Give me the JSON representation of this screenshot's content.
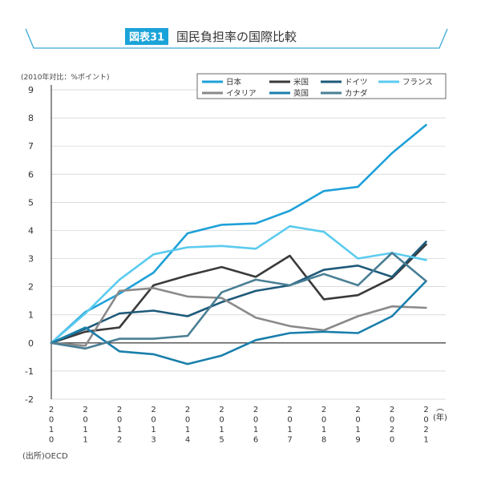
{
  "badge": "図表31",
  "title": "国民負担率の国際比較",
  "unit_label": "(2010年対比：%ポイント)",
  "source": "(出所)OECD",
  "x_unit": "(年)",
  "colors": {
    "badge_bg": "#1aa3d9",
    "header_line": "#3aa8d6",
    "axis": "#222222",
    "grid": "#cfcfcf"
  },
  "chart_data": {
    "type": "line",
    "title": "国民負担率の国際比較",
    "ylabel": "(2010年対比：%ポイント)",
    "xlabel": "(年)",
    "x": [
      "2010",
      "2011",
      "2012",
      "2013",
      "2014",
      "2015",
      "2016",
      "2017",
      "2018",
      "2019",
      "2020",
      "2021"
    ],
    "ylim": [
      -2,
      9
    ],
    "yticks": [
      "-2",
      "-1",
      "0",
      "1",
      "2",
      "3",
      "4",
      "5",
      "6",
      "7",
      "8",
      "9"
    ],
    "grid": true,
    "legend_position": "top-right",
    "series": [
      {
        "name": "日本",
        "color": "#1fa0d8",
        "values": [
          0,
          1.1,
          1.75,
          2.5,
          3.9,
          4.2,
          4.25,
          4.7,
          5.4,
          5.55,
          6.75,
          7.75
        ]
      },
      {
        "name": "米国",
        "color": "#3a3a3a",
        "values": [
          0,
          0.4,
          0.55,
          2.05,
          2.4,
          2.7,
          2.35,
          3.1,
          1.55,
          1.7,
          2.3,
          3.5
        ]
      },
      {
        "name": "ドイツ",
        "color": "#1e5a7a",
        "values": [
          0,
          0.5,
          1.05,
          1.15,
          0.95,
          1.45,
          1.85,
          2.05,
          2.6,
          2.75,
          2.35,
          3.6
        ]
      },
      {
        "name": "フランス",
        "color": "#5ccbef",
        "values": [
          0,
          1.05,
          2.25,
          3.15,
          3.4,
          3.45,
          3.35,
          4.15,
          3.95,
          3.0,
          3.2,
          2.95
        ]
      },
      {
        "name": "イタリア",
        "color": "#8a8a8a",
        "values": [
          0,
          -0.1,
          1.85,
          1.95,
          1.65,
          1.6,
          0.9,
          0.6,
          0.45,
          0.95,
          1.3,
          1.25
        ]
      },
      {
        "name": "英国",
        "color": "#1a7fab",
        "values": [
          0,
          0.55,
          -0.3,
          -0.4,
          -0.75,
          -0.45,
          0.1,
          0.35,
          0.4,
          0.35,
          0.95,
          2.2
        ]
      },
      {
        "name": "カナダ",
        "color": "#4a7f95",
        "values": [
          0,
          -0.2,
          0.15,
          0.15,
          0.25,
          1.8,
          2.25,
          2.05,
          2.45,
          2.05,
          3.2,
          2.2
        ]
      }
    ]
  }
}
